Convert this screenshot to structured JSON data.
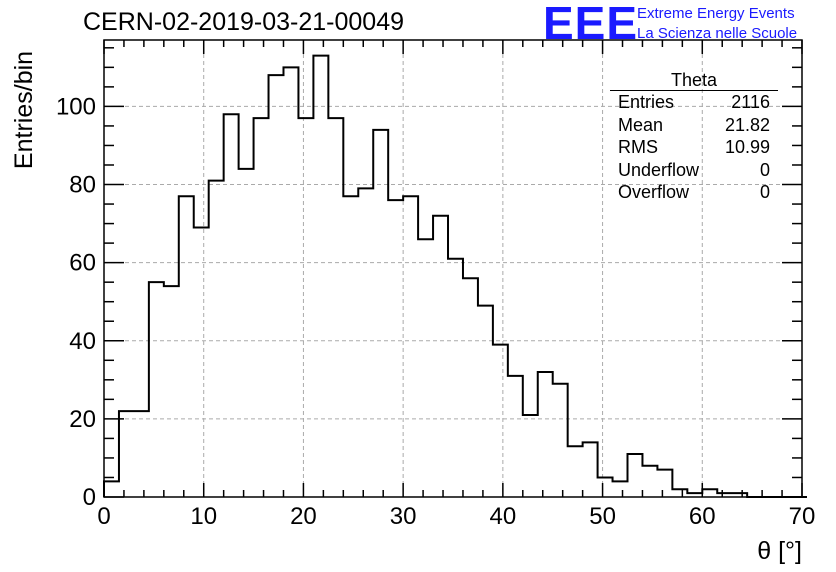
{
  "page_title": "CERN-02-2019-03-21-00049",
  "logo": {
    "letters": "EEE",
    "line1": "Extreme Energy Events",
    "line2": "La Scienza nelle Scuole",
    "color": "#1a1aff"
  },
  "stats_box": {
    "title": "Theta",
    "rows": [
      {
        "label": "Entries",
        "value": "2116"
      },
      {
        "label": "Mean",
        "value": "21.82"
      },
      {
        "label": "RMS",
        "value": "10.99"
      },
      {
        "label": "Underflow",
        "value": "0"
      },
      {
        "label": "Overflow",
        "value": "0"
      }
    ]
  },
  "chart_data": {
    "type": "bar",
    "style": "step histogram",
    "ylabel": "Entries/bin",
    "xlabel": "θ [°]",
    "xlim": [
      0,
      70
    ],
    "ylim": [
      0,
      117
    ],
    "xticks": [
      "0",
      "10",
      "20",
      "30",
      "40",
      "50",
      "60",
      "70"
    ],
    "yticks": [
      "0",
      "20",
      "40",
      "60",
      "80",
      "100"
    ],
    "grid": true,
    "bin_width": 1.5,
    "bin_start": 0,
    "values": [
      4,
      22,
      22,
      55,
      54,
      77,
      69,
      81,
      98,
      84,
      97,
      108,
      110,
      97,
      113,
      97,
      77,
      79,
      94,
      76,
      77,
      66,
      72,
      61,
      56,
      49,
      39,
      31,
      21,
      32,
      29,
      13,
      14,
      5,
      4,
      11,
      8,
      7,
      2,
      1,
      2,
      1,
      1,
      0,
      0,
      0,
      0
    ]
  }
}
